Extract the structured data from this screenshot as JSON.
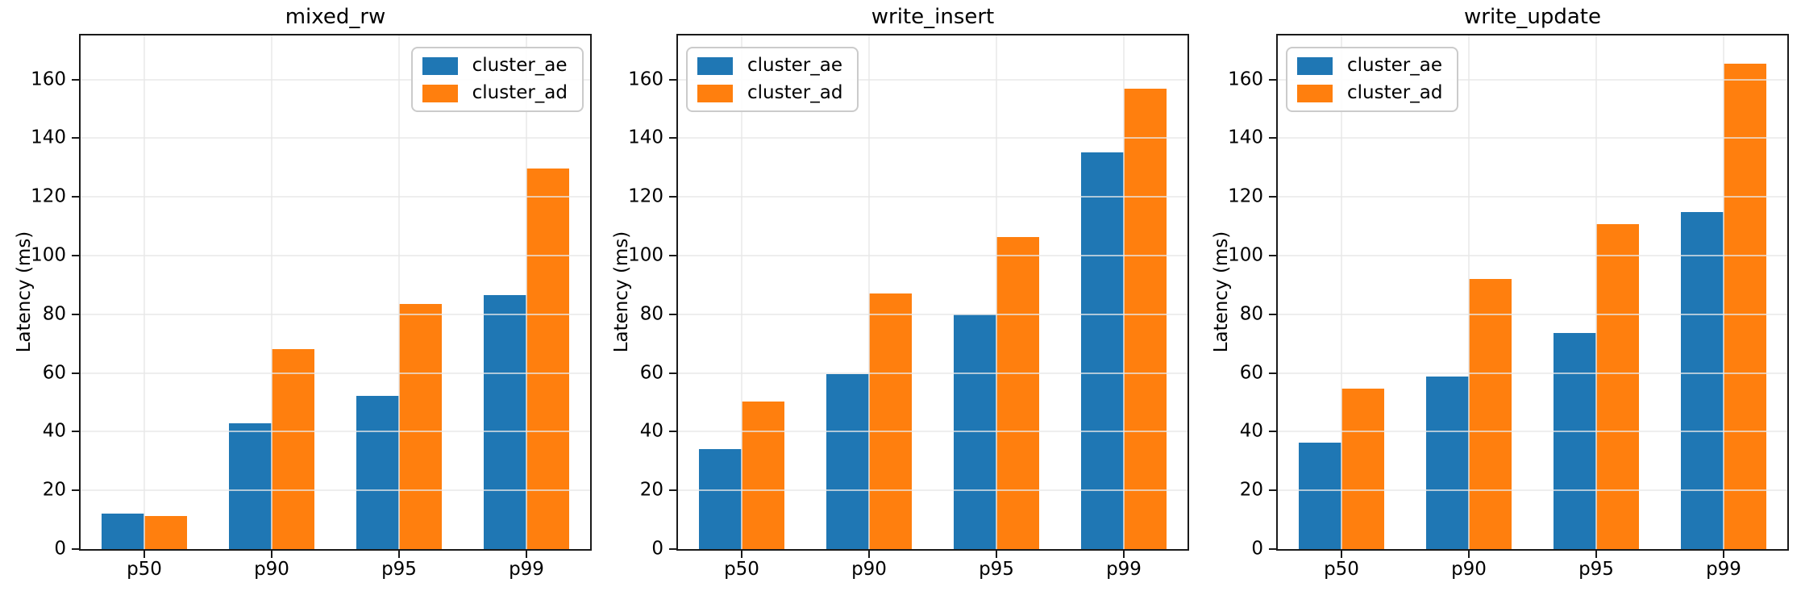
{
  "chart_data": [
    {
      "type": "bar",
      "title": "mixed_rw",
      "ylabel": "Latency (ms)",
      "categories": [
        "p50",
        "p90",
        "p95",
        "p99"
      ],
      "series": [
        {
          "name": "cluster_ae",
          "color": "#1f77b4",
          "values": [
            12.0,
            42.9,
            52.2,
            86.5
          ]
        },
        {
          "name": "cluster_ad",
          "color": "#ff7f0e",
          "values": [
            11.4,
            68.0,
            83.4,
            129.7
          ]
        }
      ],
      "ylim": [
        0,
        175
      ],
      "yticks": [
        0,
        20,
        40,
        60,
        80,
        100,
        120,
        140,
        160
      ],
      "grid": true,
      "legend_position": "top-right"
    },
    {
      "type": "bar",
      "title": "write_insert",
      "ylabel": "Latency (ms)",
      "categories": [
        "p50",
        "p90",
        "p95",
        "p99"
      ],
      "series": [
        {
          "name": "cluster_ae",
          "color": "#1f77b4",
          "values": [
            34.0,
            59.5,
            80.0,
            135.3
          ]
        },
        {
          "name": "cluster_ad",
          "color": "#ff7f0e",
          "values": [
            50.4,
            87.2,
            106.3,
            157.0
          ]
        }
      ],
      "ylim": [
        0,
        175
      ],
      "yticks": [
        0,
        20,
        40,
        60,
        80,
        100,
        120,
        140,
        160
      ],
      "grid": true,
      "legend_position": "top-left"
    },
    {
      "type": "bar",
      "title": "write_update",
      "ylabel": "Latency (ms)",
      "categories": [
        "p50",
        "p90",
        "p95",
        "p99"
      ],
      "series": [
        {
          "name": "cluster_ae",
          "color": "#1f77b4",
          "values": [
            36.3,
            58.7,
            73.6,
            114.8
          ]
        },
        {
          "name": "cluster_ad",
          "color": "#ff7f0e",
          "values": [
            54.7,
            92.0,
            110.6,
            165.5
          ]
        }
      ],
      "ylim": [
        0,
        175
      ],
      "yticks": [
        0,
        20,
        40,
        60,
        80,
        100,
        120,
        140,
        160
      ],
      "grid": true,
      "legend_position": "top-left"
    }
  ]
}
